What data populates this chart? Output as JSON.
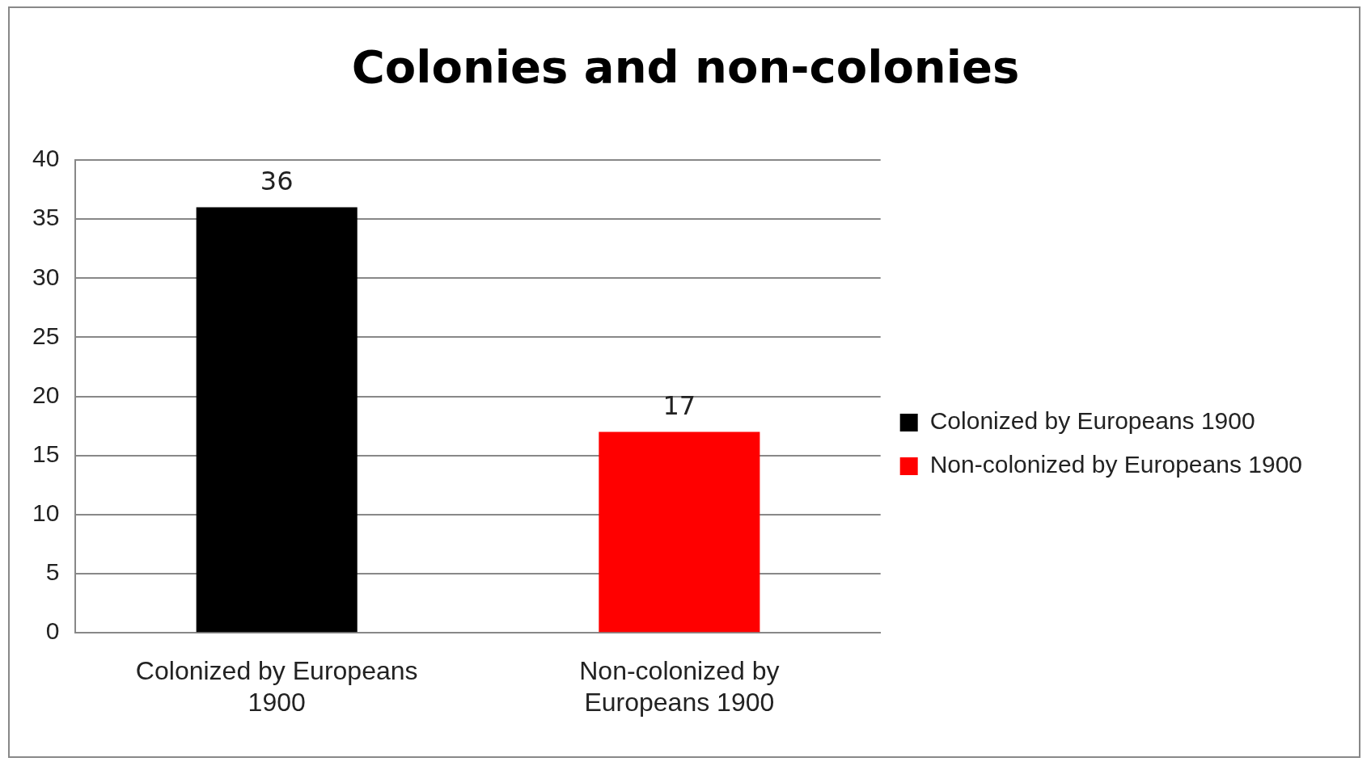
{
  "chart_data": {
    "type": "bar",
    "title": "Colonies and non-colonies",
    "categories": [
      "Colonized by Europeans 1900",
      "Non-colonized by Europeans 1900"
    ],
    "series": [
      {
        "name": "Colonized by Europeans 1900",
        "color": "#000000",
        "values": [
          36,
          null
        ]
      },
      {
        "name": "Non-colonized by Europeans 1900",
        "color": "#ff0000",
        "values": [
          null,
          17
        ]
      }
    ],
    "ylim": [
      0,
      40
    ],
    "yticks": [
      0,
      5,
      10,
      15,
      20,
      25,
      30,
      35,
      40
    ],
    "grid": "y",
    "legend": "right",
    "data_labels": true
  }
}
